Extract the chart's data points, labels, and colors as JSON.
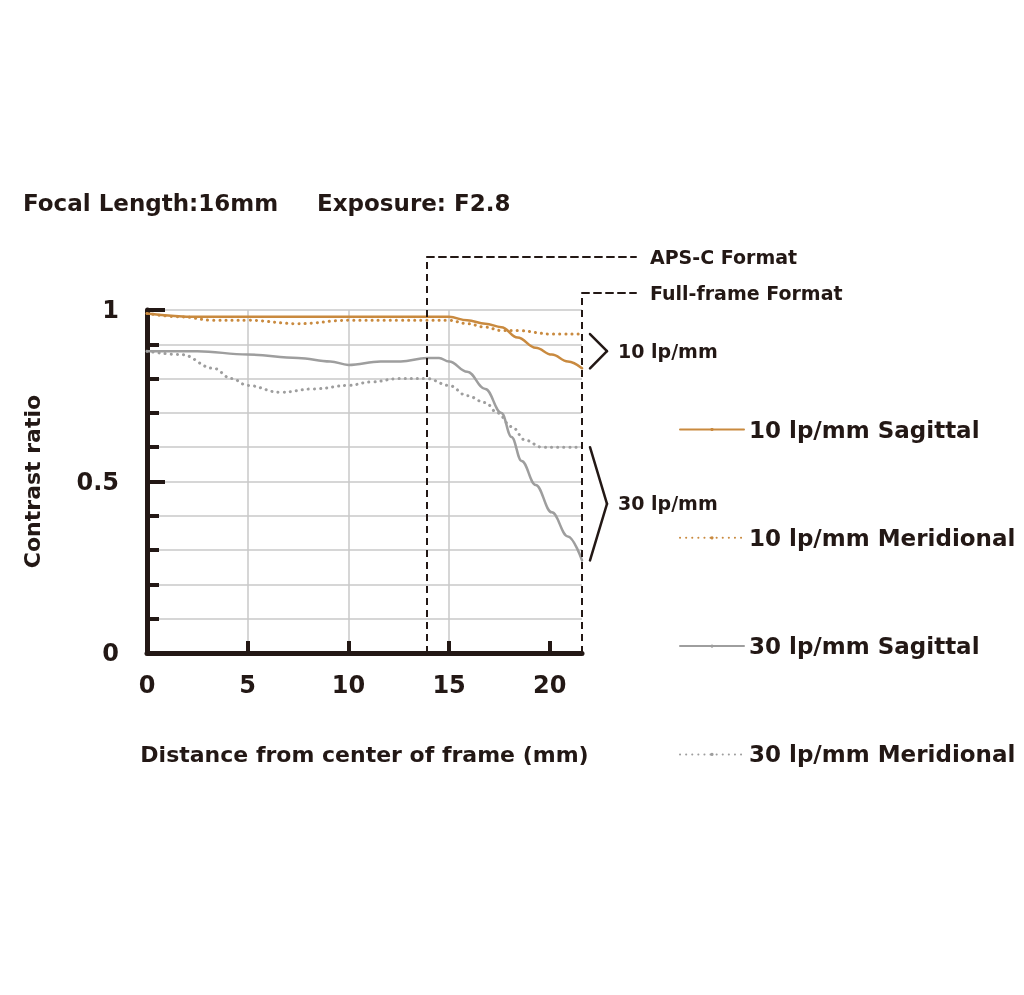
{
  "chart_data": {
    "type": "line",
    "title": "Focal Length:16mm",
    "subtitle": "Exposure: F2.8",
    "xlabel": "Distance from center of frame (mm)",
    "ylabel": "Contrast ratio",
    "xlim": [
      0,
      21.6
    ],
    "xticks": [
      0,
      5,
      10,
      15,
      20
    ],
    "ylim": [
      0,
      1
    ],
    "yticks": [
      0,
      {
        "value": 0.1,
        "label": null
      },
      {
        "value": 0.2,
        "label": null
      },
      {
        "value": 0.3,
        "label": null
      },
      {
        "value": 0.4,
        "label": null
      },
      0.5,
      {
        "value": 0.6,
        "label": null
      },
      {
        "value": 0.7,
        "label": null
      },
      {
        "value": 0.8,
        "label": null
      },
      {
        "value": 0.9,
        "label": null
      },
      1
    ],
    "grid": true,
    "legend": "right",
    "series": [
      {
        "name": "10 lp/mm Sagittal",
        "color": "#c98a3f",
        "line_style": "solid",
        "x": [
          0,
          2.5,
          5,
          7.5,
          10,
          12,
          13.9,
          15,
          15.9,
          16.8,
          17.6,
          18.4,
          19.3,
          20.1,
          20.9,
          21.6
        ],
        "values": [
          0.99,
          0.98,
          0.98,
          0.98,
          0.98,
          0.98,
          0.98,
          0.98,
          0.97,
          0.96,
          0.95,
          0.92,
          0.89,
          0.87,
          0.85,
          0.83
        ]
      },
      {
        "name": "10 lp/mm Meridional",
        "color": "#c98a3f",
        "line_style": "dotted",
        "x": [
          0,
          1.7,
          3.3,
          5,
          7.5,
          10,
          12.6,
          13.9,
          15,
          15.9,
          16.8,
          17.6,
          18.4,
          20.1,
          21.6
        ],
        "values": [
          0.99,
          0.98,
          0.97,
          0.97,
          0.96,
          0.97,
          0.97,
          0.97,
          0.97,
          0.96,
          0.95,
          0.94,
          0.94,
          0.93,
          0.93
        ]
      },
      {
        "name": "30 lp/mm Sagittal",
        "color": "#9e9e9e",
        "line_style": "solid",
        "x": [
          0,
          2.5,
          5,
          7.5,
          9.1,
          10,
          11.6,
          12.6,
          13.9,
          14.5,
          15,
          15.9,
          16.8,
          17.6,
          18.1,
          18.6,
          19.3,
          20.1,
          20.9,
          21.6
        ],
        "values": [
          0.88,
          0.88,
          0.87,
          0.86,
          0.85,
          0.84,
          0.85,
          0.85,
          0.86,
          0.86,
          0.85,
          0.82,
          0.77,
          0.7,
          0.63,
          0.56,
          0.49,
          0.41,
          0.34,
          0.27
        ]
      },
      {
        "name": "30 lp/mm Meridional",
        "color": "#9e9e9e",
        "line_style": "dotted",
        "x": [
          0,
          1.7,
          3.3,
          4.2,
          5,
          6.6,
          8.3,
          10,
          11.1,
          12.5,
          13.9,
          15,
          15.9,
          16.8,
          17.4,
          18.1,
          18.8,
          19.6,
          20.4,
          21.6
        ],
        "values": [
          0.88,
          0.87,
          0.83,
          0.8,
          0.78,
          0.76,
          0.77,
          0.78,
          0.79,
          0.8,
          0.8,
          0.78,
          0.75,
          0.73,
          0.7,
          0.66,
          0.62,
          0.6,
          0.6,
          0.6
        ]
      }
    ],
    "ref_lines": [
      {
        "axis": "x",
        "value": 13.9,
        "label": "APS-C Format",
        "color": "#231815",
        "line_style": "dashed"
      },
      {
        "axis": "x",
        "value": 21.6,
        "label": "Full-frame Format",
        "color": "#231815",
        "line_style": "dashed"
      }
    ],
    "annotations": [
      "10 lp/mm",
      "30 lp/mm"
    ]
  }
}
